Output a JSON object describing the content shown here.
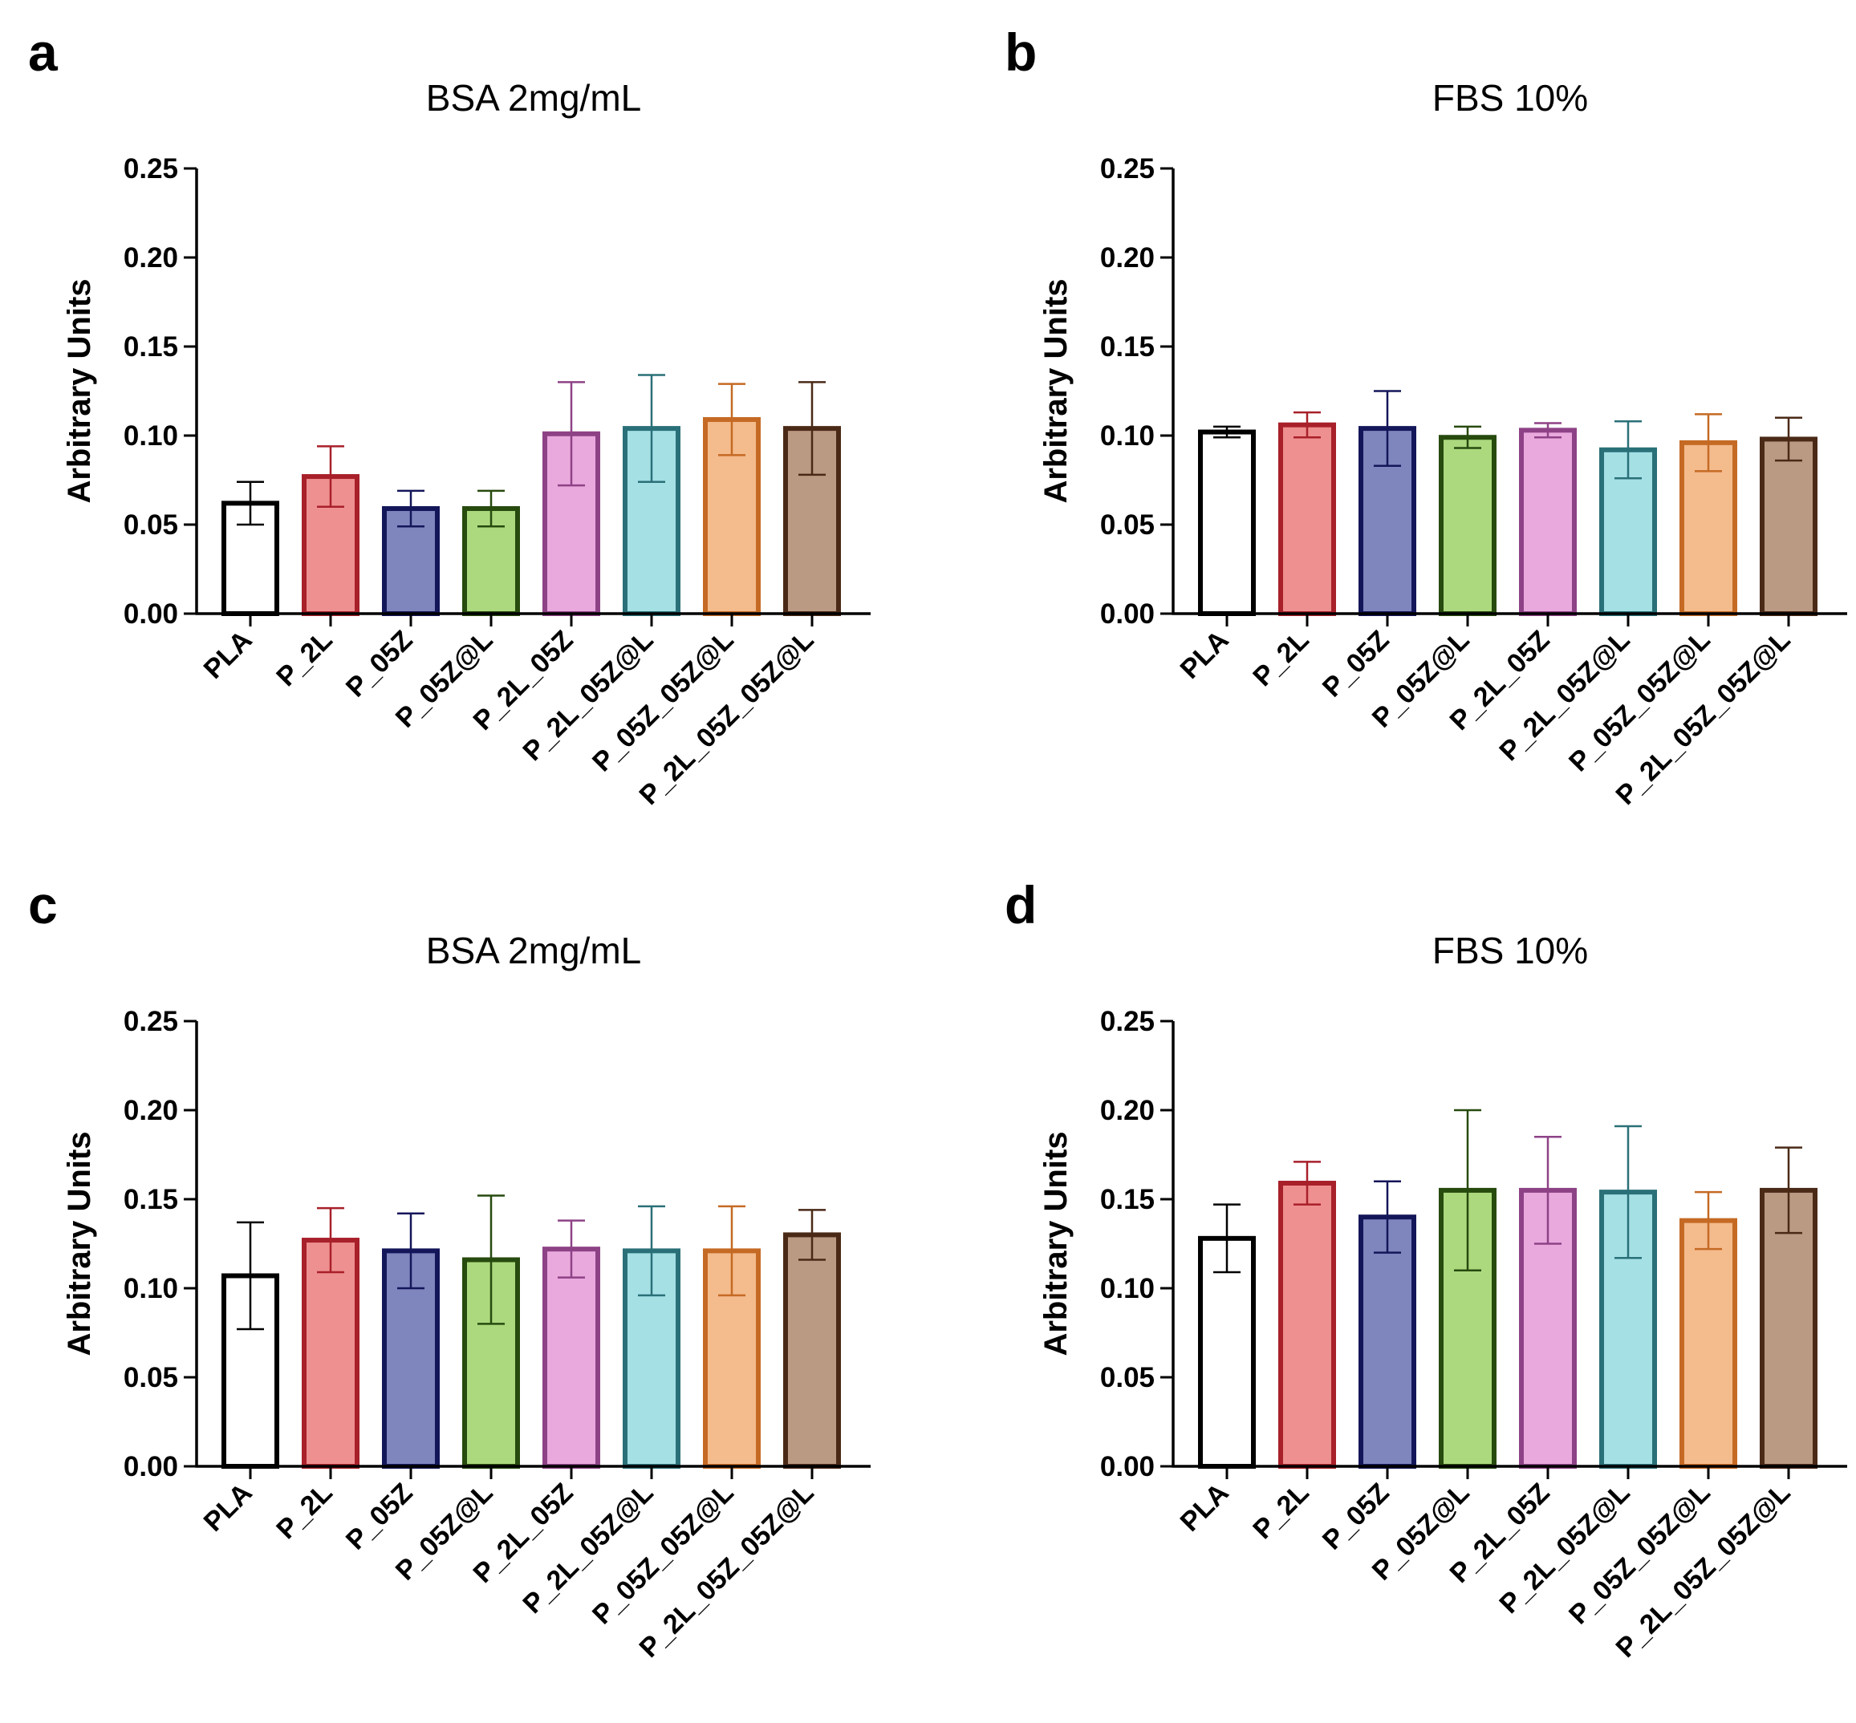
{
  "figure": {
    "colors": {
      "fills": [
        "#ffffff",
        "#ef9090",
        "#7f85bd",
        "#acd97e",
        "#e9a9dd",
        "#a5e0e5",
        "#f4bb8d",
        "#ba9a82"
      ],
      "edges": [
        "#000000",
        "#a8202a",
        "#14165a",
        "#274a0e",
        "#8e4286",
        "#2a7078",
        "#c56a24",
        "#4a2a17"
      ]
    }
  },
  "chart_data": [
    {
      "panel": "a",
      "type": "bar",
      "title": "BSA 2mg/mL",
      "xlabel": "",
      "ylabel": "Arbitrary Units",
      "ylim": [
        0,
        0.25
      ],
      "yticks": [
        "0.00",
        "0.05",
        "0.10",
        "0.15",
        "0.20",
        "0.25"
      ],
      "categories": [
        "PLA",
        "P_2L",
        "P_05Z",
        "P_05Z@L",
        "P_2L_05Z",
        "P_2L_05Z@L",
        "P_05Z_05Z@L",
        "P_2L_05Z_05Z@L"
      ],
      "values": [
        0.062,
        0.077,
        0.059,
        0.059,
        0.101,
        0.104,
        0.109,
        0.104
      ],
      "errors": [
        0.012,
        0.017,
        0.01,
        0.01,
        0.029,
        0.03,
        0.02,
        0.026
      ]
    },
    {
      "panel": "b",
      "type": "bar",
      "title": "FBS 10%",
      "xlabel": "",
      "ylabel": "Arbitrary Units",
      "ylim": [
        0,
        0.25
      ],
      "yticks": [
        "0.00",
        "0.05",
        "0.10",
        "0.15",
        "0.20",
        "0.25"
      ],
      "categories": [
        "PLA",
        "P_2L",
        "P_05Z",
        "P_05Z@L",
        "P_2L_05Z",
        "P_2L_05Z@L",
        "P_05Z_05Z@L",
        "P_2L_05Z_05Z@L"
      ],
      "values": [
        0.102,
        0.106,
        0.104,
        0.099,
        0.103,
        0.092,
        0.096,
        0.098
      ],
      "errors": [
        0.003,
        0.007,
        0.021,
        0.006,
        0.004,
        0.016,
        0.016,
        0.012
      ]
    },
    {
      "panel": "c",
      "type": "bar",
      "title": "BSA 2mg/mL",
      "xlabel": "",
      "ylabel": "Arbitrary Units",
      "ylim": [
        0,
        0.25
      ],
      "yticks": [
        "0.00",
        "0.05",
        "0.10",
        "0.15",
        "0.20",
        "0.25"
      ],
      "categories": [
        "PLA",
        "P_2L",
        "P_05Z",
        "P_05Z@L",
        "P_2L_05Z",
        "P_2L_05Z@L",
        "P_05Z_05Z@L",
        "P_2L_05Z_05Z@L"
      ],
      "values": [
        0.107,
        0.127,
        0.121,
        0.116,
        0.122,
        0.121,
        0.121,
        0.13
      ],
      "errors": [
        0.03,
        0.018,
        0.021,
        0.036,
        0.016,
        0.025,
        0.025,
        0.014
      ]
    },
    {
      "panel": "d",
      "type": "bar",
      "title": "FBS 10%",
      "xlabel": "",
      "ylabel": "Arbitrary Units",
      "ylim": [
        0,
        0.25
      ],
      "yticks": [
        "0.00",
        "0.05",
        "0.10",
        "0.15",
        "0.20",
        "0.25"
      ],
      "categories": [
        "PLA",
        "P_2L",
        "P_05Z",
        "P_05Z@L",
        "P_2L_05Z",
        "P_2L_05Z@L",
        "P_05Z_05Z@L",
        "P_2L_05Z_05Z@L"
      ],
      "values": [
        0.128,
        0.159,
        0.14,
        0.155,
        0.155,
        0.154,
        0.138,
        0.155
      ],
      "errors": [
        0.019,
        0.012,
        0.02,
        0.045,
        0.03,
        0.037,
        0.016,
        0.024
      ]
    }
  ]
}
